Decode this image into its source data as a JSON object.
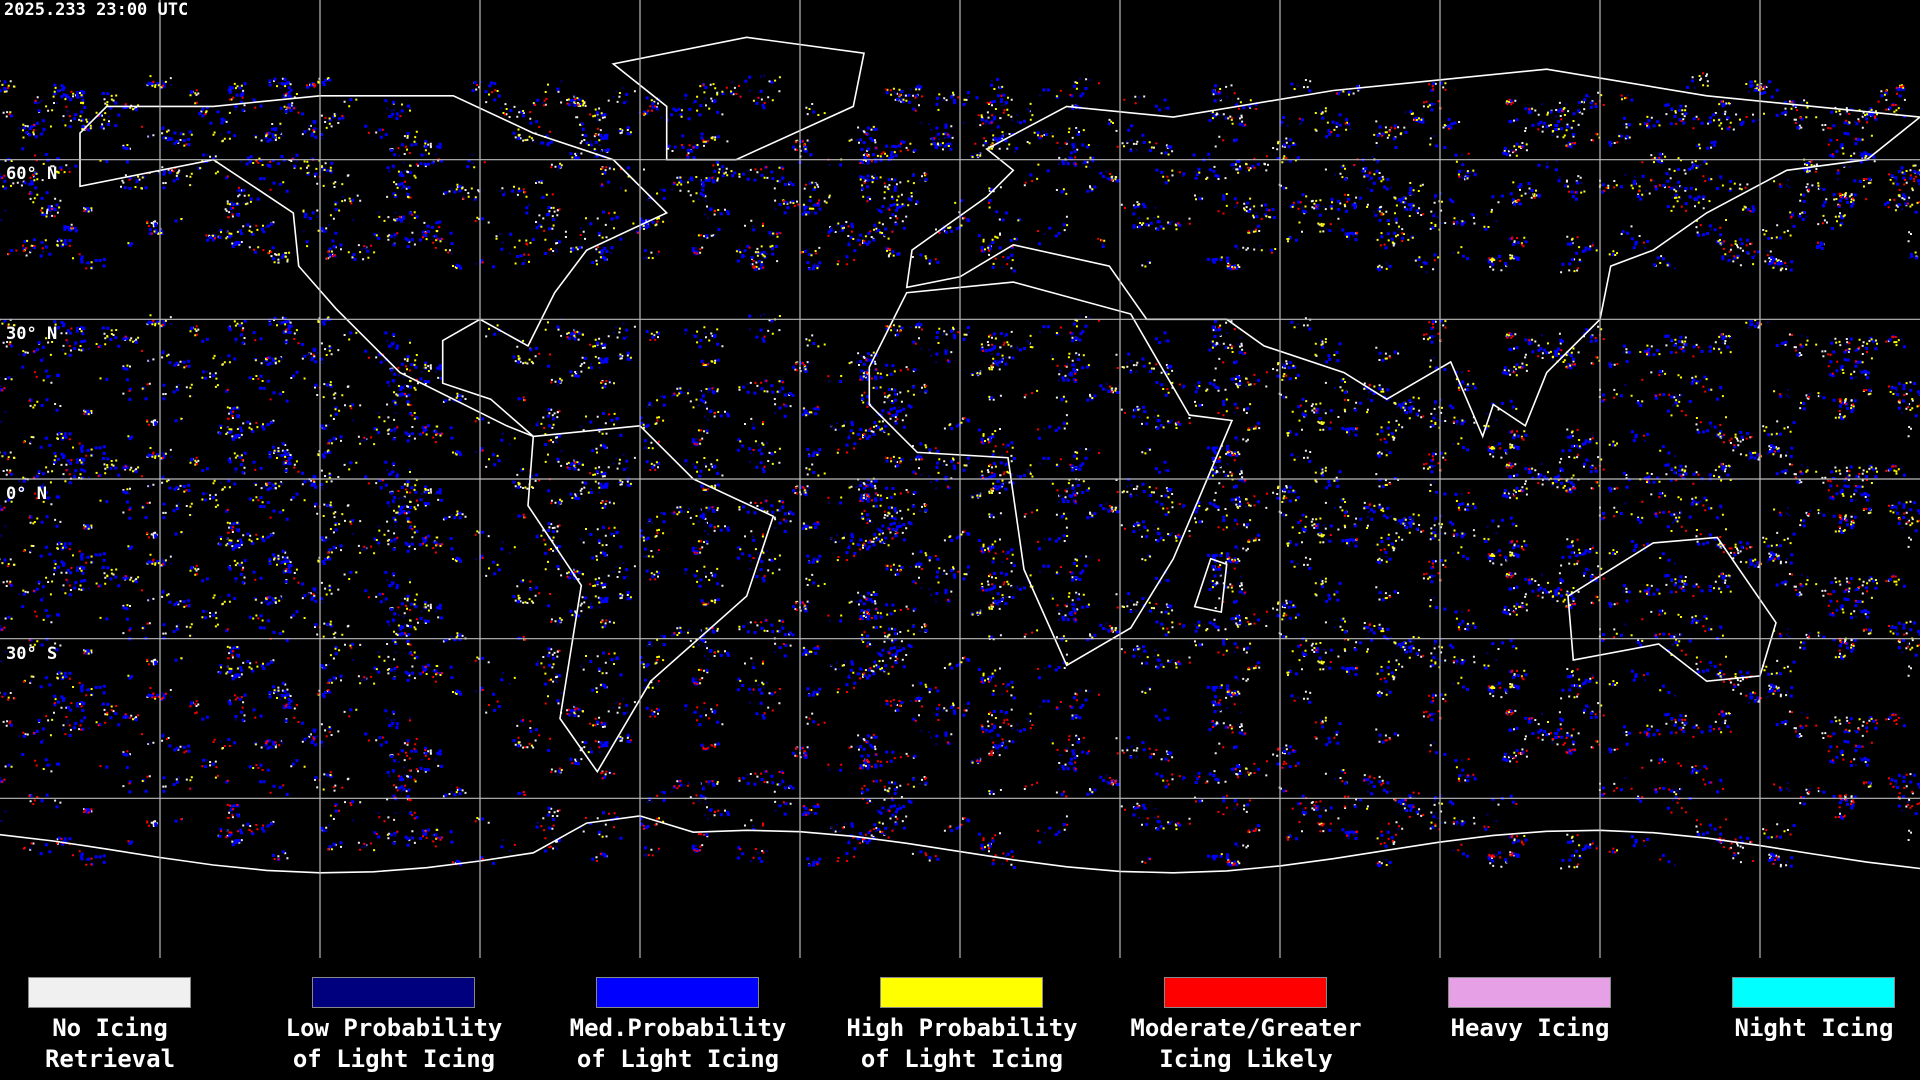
{
  "header": {
    "timestamp": "2025.233 23:00 UTC"
  },
  "map": {
    "lat_labels": [
      "60° N",
      "30° N",
      "0° N",
      "30° S"
    ]
  },
  "legend": [
    {
      "label": [
        "No Icing",
        "Retrieval"
      ],
      "color": "#f0f0f0"
    },
    {
      "label": [
        "Low Probability",
        "of Light Icing"
      ],
      "color": "#00007f"
    },
    {
      "label": [
        "Med.Probability",
        "of Light Icing"
      ],
      "color": "#0000ff"
    },
    {
      "label": [
        "High Probability",
        "of Light Icing"
      ],
      "color": "#ffff00"
    },
    {
      "label": [
        "Moderate/Greater",
        "Icing Likely"
      ],
      "color": "#ff0000"
    },
    {
      "label": [
        "Heavy Icing"
      ],
      "color": "#e6a0e6"
    },
    {
      "label": [
        "Night Icing"
      ],
      "color": "#00ffff"
    }
  ]
}
